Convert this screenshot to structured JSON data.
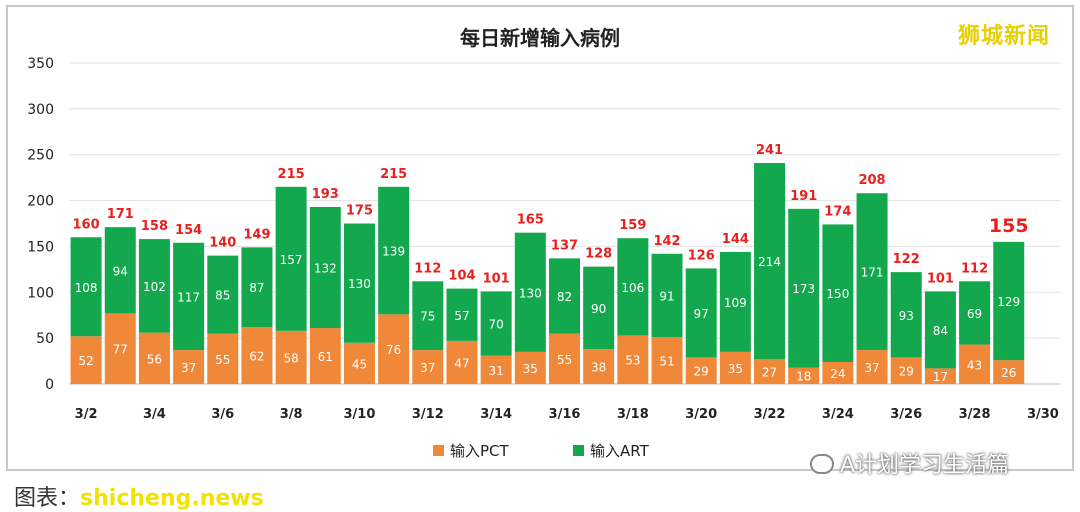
{
  "chart_data": {
    "type": "bar",
    "stacked": true,
    "title": "每日新增输入病例",
    "categories": [
      "3/2",
      "3/3",
      "3/4",
      "3/5",
      "3/6",
      "3/7",
      "3/8",
      "3/9",
      "3/10",
      "3/11",
      "3/12",
      "3/13",
      "3/14",
      "3/15",
      "3/16",
      "3/17",
      "3/18",
      "3/19",
      "3/20",
      "3/21",
      "3/22",
      "3/23",
      "3/24",
      "3/25",
      "3/26",
      "3/27",
      "3/28",
      "3/29",
      "3/30"
    ],
    "x_tick_labels": [
      "3/2",
      "3/4",
      "3/6",
      "3/8",
      "3/10",
      "3/12",
      "3/14",
      "3/16",
      "3/18",
      "3/20",
      "3/22",
      "3/24",
      "3/26",
      "3/28",
      "3/30"
    ],
    "series": [
      {
        "name": "输入PCT",
        "color": "#f0883a",
        "values": [
          52,
          77,
          56,
          37,
          55,
          62,
          58,
          61,
          45,
          76,
          37,
          47,
          31,
          35,
          55,
          38,
          53,
          51,
          29,
          35,
          27,
          18,
          24,
          37,
          29,
          17,
          43,
          26,
          null
        ]
      },
      {
        "name": "输入ART",
        "color": "#14a84e",
        "values": [
          108,
          94,
          102,
          117,
          85,
          87,
          157,
          132,
          130,
          139,
          75,
          57,
          70,
          130,
          82,
          90,
          106,
          91,
          97,
          109,
          214,
          173,
          150,
          171,
          93,
          84,
          69,
          129,
          null
        ]
      }
    ],
    "totals": [
      160,
      171,
      158,
      154,
      140,
      149,
      215,
      193,
      175,
      215,
      112,
      104,
      101,
      165,
      137,
      128,
      159,
      142,
      126,
      144,
      241,
      191,
      174,
      208,
      122,
      101,
      112,
      155,
      null
    ],
    "ylim": [
      0,
      350
    ],
    "y_ticks": [
      0,
      50,
      100,
      150,
      200,
      250,
      300,
      350
    ],
    "grid": true,
    "legend_position": "bottom",
    "total_label_color": "#e8201e",
    "highlight_last_total": true
  },
  "watermarks": {
    "top_right": "狮城新闻",
    "bottom_left_prefix": "图表：",
    "bottom_left_site": "shicheng.news",
    "wechat": "A计划学习生活篇"
  }
}
